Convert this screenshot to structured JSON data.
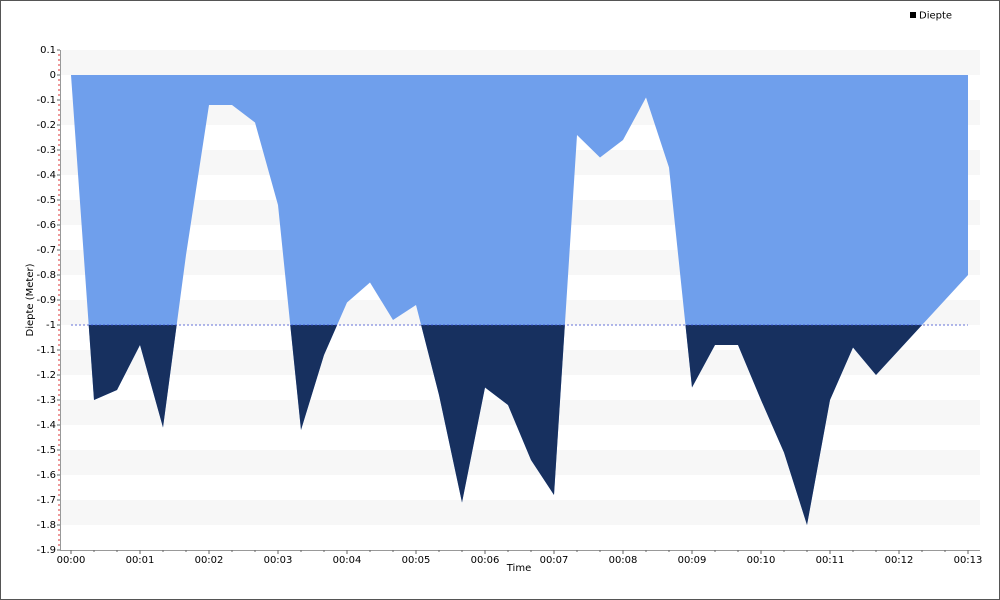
{
  "chart_data": {
    "type": "area",
    "x_label": "Time",
    "y_label": "Diepte (Meter)",
    "x": [
      0,
      20,
      40,
      60,
      80,
      100,
      120,
      140,
      160,
      180,
      200,
      220,
      240,
      260,
      280,
      300,
      320,
      340,
      360,
      380,
      400,
      420,
      440,
      460,
      480,
      500,
      520,
      540,
      560,
      580,
      600,
      620,
      640,
      660,
      680,
      700,
      780
    ],
    "series": [
      {
        "name": "Diepte",
        "color": "#6f9fec",
        "legend_color": "#000000",
        "values": [
          0,
          -1.3,
          -1.26,
          -1.08,
          -1.41,
          -0.72,
          -0.12,
          -0.12,
          -0.19,
          -0.52,
          -1.42,
          -1.12,
          -0.91,
          -0.83,
          -0.98,
          -0.92,
          -1.28,
          -1.71,
          -1.25,
          -1.32,
          -1.54,
          -1.68,
          -0.24,
          -0.33,
          -0.26,
          -0.09,
          -0.37,
          -1.25,
          -1.08,
          -1.08,
          -1.3,
          -1.51,
          -1.8,
          -1.3,
          -1.09,
          -1.2,
          -0.8
        ]
      }
    ],
    "threshold": -1,
    "threshold_color": "#17305f",
    "xlim": [
      0,
      780
    ],
    "xticks": [
      {
        "value": 0,
        "label": "00:00"
      },
      {
        "value": 60,
        "label": "00:01"
      },
      {
        "value": 120,
        "label": "00:02"
      },
      {
        "value": 180,
        "label": "00:03"
      },
      {
        "value": 240,
        "label": "00:04"
      },
      {
        "value": 300,
        "label": "00:05"
      },
      {
        "value": 360,
        "label": "00:06"
      },
      {
        "value": 420,
        "label": "00:07"
      },
      {
        "value": 480,
        "label": "00:08"
      },
      {
        "value": 540,
        "label": "00:09"
      },
      {
        "value": 600,
        "label": "00:10"
      },
      {
        "value": 660,
        "label": "00:11"
      },
      {
        "value": 720,
        "label": "00:12"
      },
      {
        "value": 780,
        "label": "00:13"
      }
    ],
    "ylim": [
      -1.9,
      0.1
    ],
    "yticks": [
      0.1,
      0,
      -0.1,
      -0.2,
      -0.3,
      -0.4,
      -0.5,
      -0.6,
      -0.7,
      -0.8,
      -0.9,
      -1,
      -1.1,
      -1.2,
      -1.3,
      -1.4,
      -1.5,
      -1.6,
      -1.7,
      -1.8,
      -1.9
    ],
    "grid": true,
    "legend": "top-right"
  }
}
